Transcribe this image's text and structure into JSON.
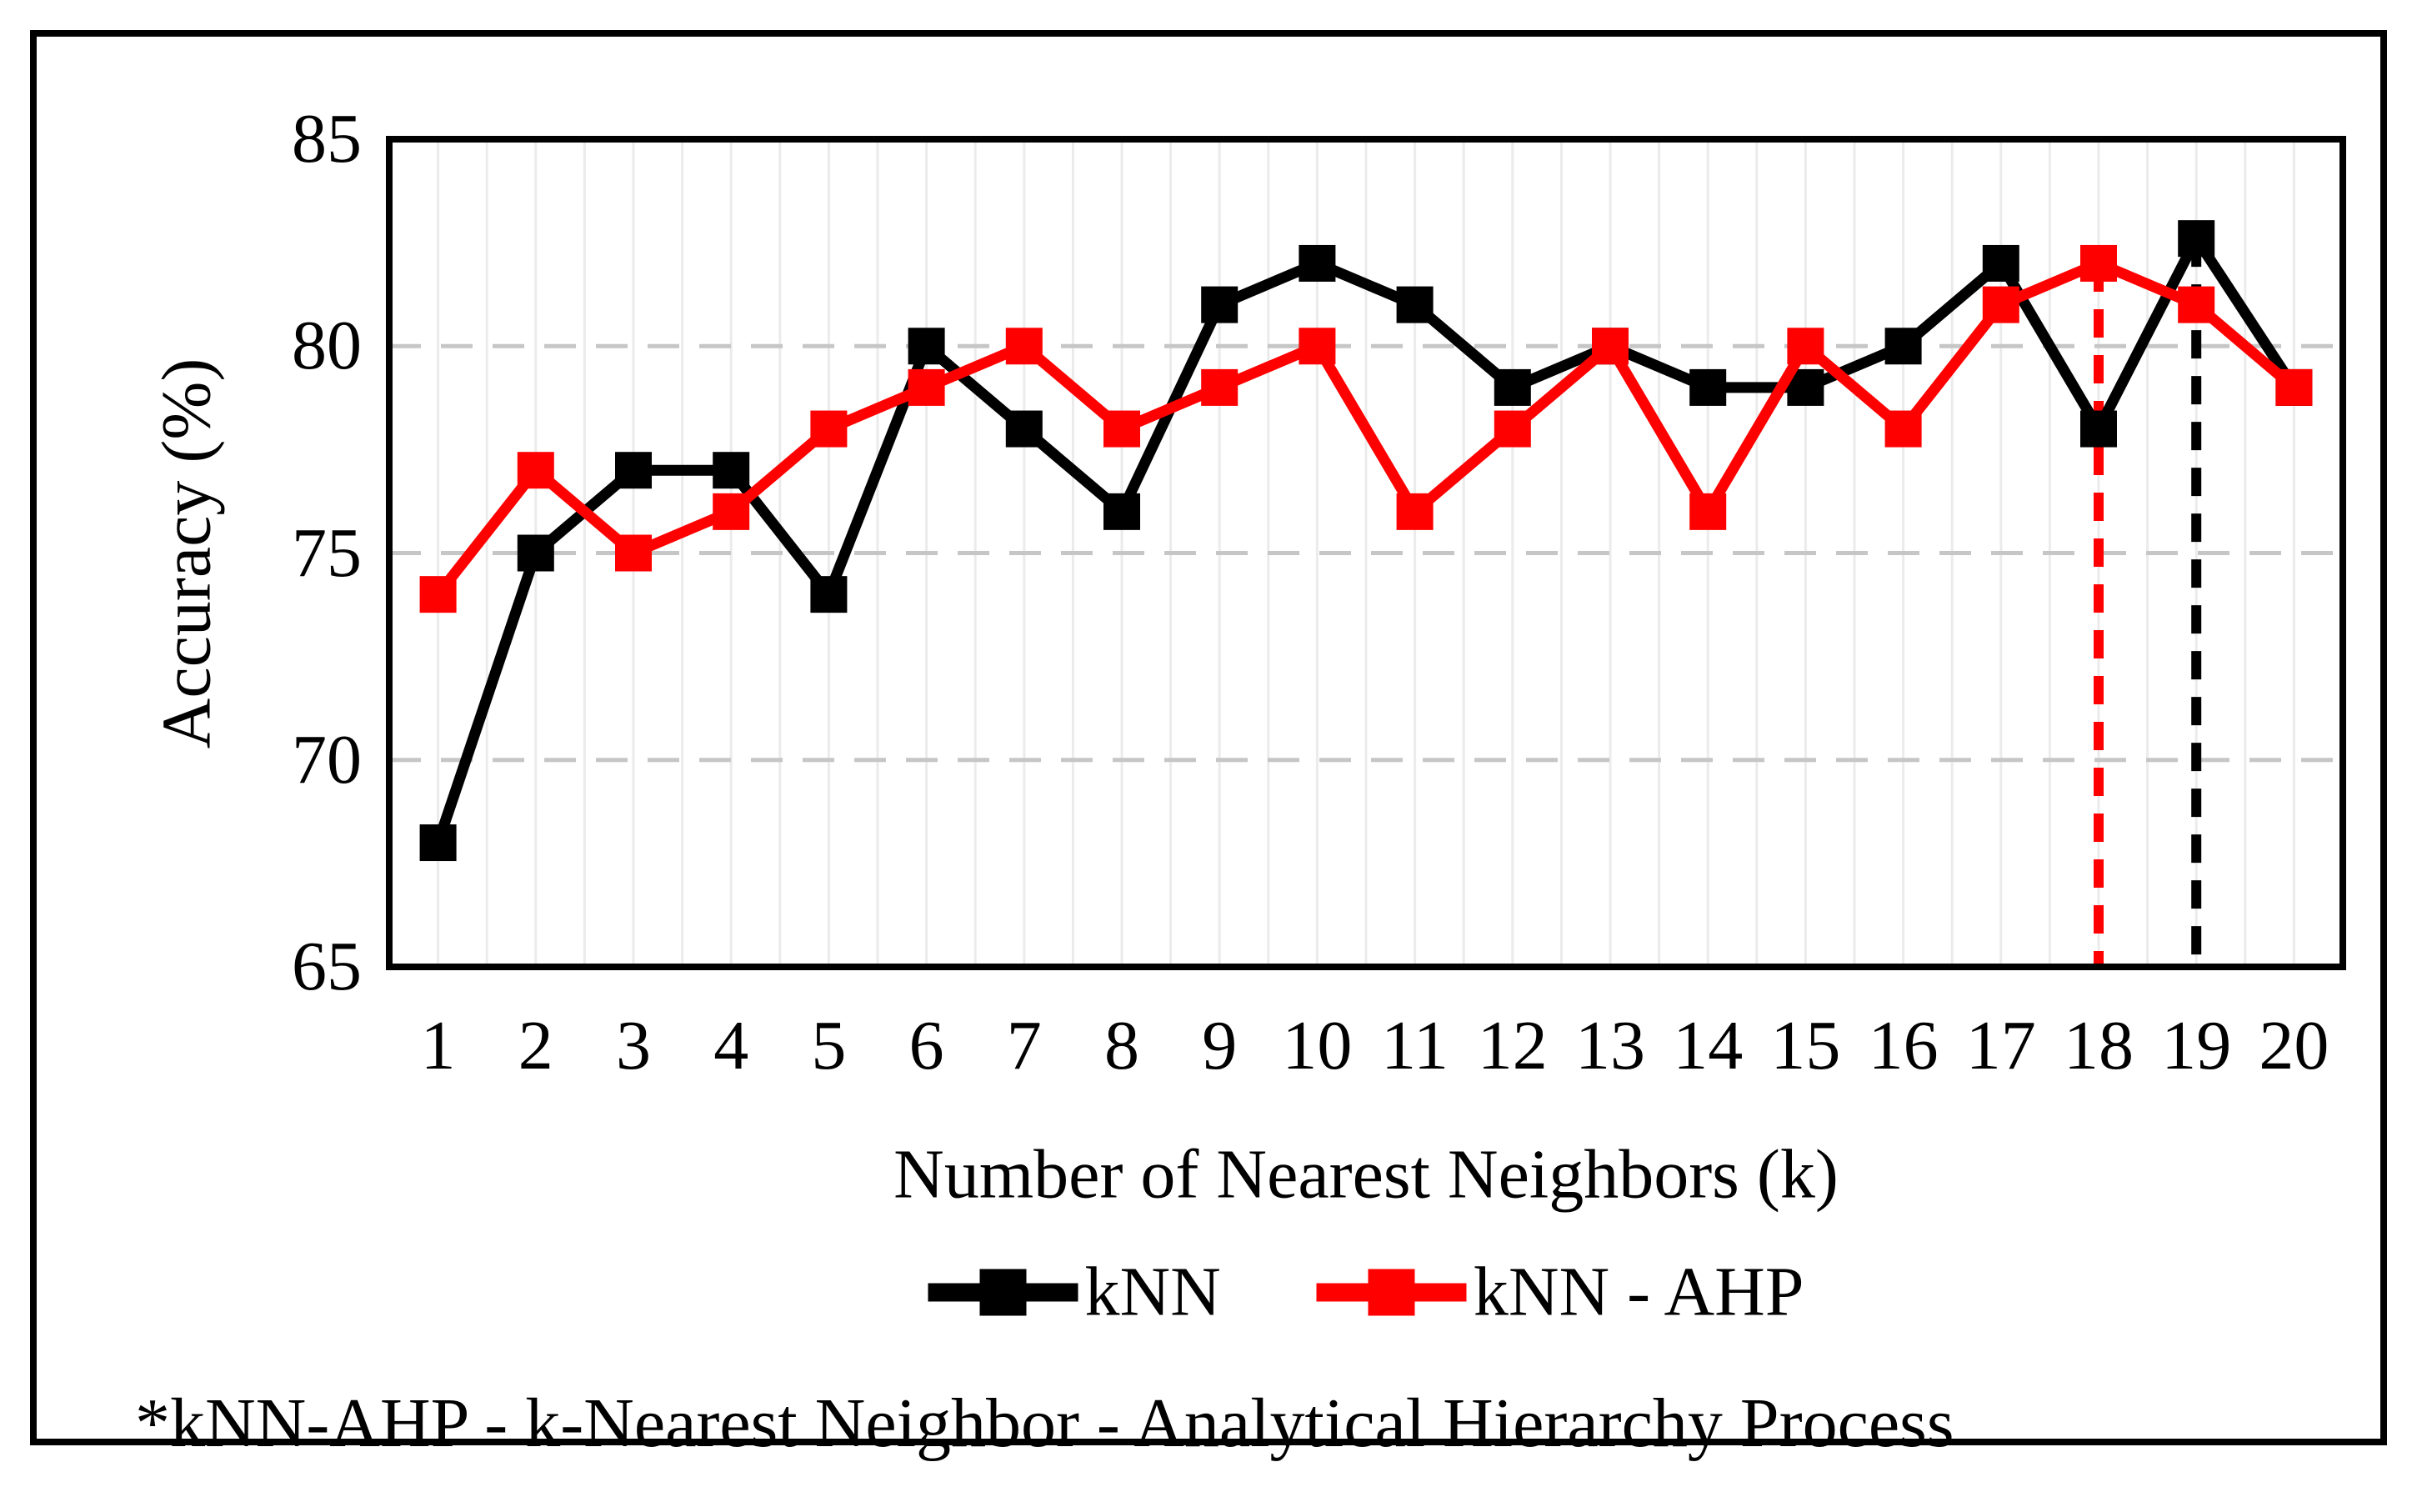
{
  "page": {
    "footnote": "*kNN-AHP - k-Nearest Neighbor - Analytical Hierarchy Process"
  },
  "chart_data": {
    "type": "line",
    "title": "",
    "xlabel": "Number of Nearest Neighbors (k)",
    "ylabel": "Accuracy (%)",
    "x": [
      1,
      2,
      3,
      4,
      5,
      6,
      7,
      8,
      9,
      10,
      11,
      12,
      13,
      14,
      15,
      16,
      17,
      18,
      19,
      20
    ],
    "y_ticks": [
      85,
      80,
      75,
      70,
      65
    ],
    "ylim": [
      65,
      85
    ],
    "grid": {
      "horizontal_dashed_values": [
        80,
        75,
        70
      ],
      "horizontal_color": "#c6c6c6",
      "vertical_minor": true,
      "vertical_color": "#ebebeb"
    },
    "legend_position": "bottom",
    "series": [
      {
        "name": "kNN",
        "color": "#000000",
        "marker": "square",
        "values": [
          68,
          75,
          77,
          77,
          74,
          80,
          78,
          76,
          81,
          82,
          81,
          79,
          80,
          79,
          79,
          80,
          82,
          78,
          82.6,
          79
        ]
      },
      {
        "name": "kNN - AHP",
        "color": "#ff0000",
        "marker": "square",
        "values": [
          74,
          77,
          75,
          76,
          78,
          79,
          80,
          78,
          79,
          80,
          76,
          78,
          80,
          76,
          80,
          78,
          81,
          82,
          81,
          79
        ]
      }
    ],
    "annotations": [
      {
        "name": "best-k-knn-ahp",
        "type": "vline_dashed",
        "x": 18,
        "y_top": 82,
        "color": "#ff0000"
      },
      {
        "name": "best-k-knn",
        "type": "vline_dashed",
        "x": 19,
        "y_top": 82.6,
        "color": "#000000"
      }
    ]
  }
}
